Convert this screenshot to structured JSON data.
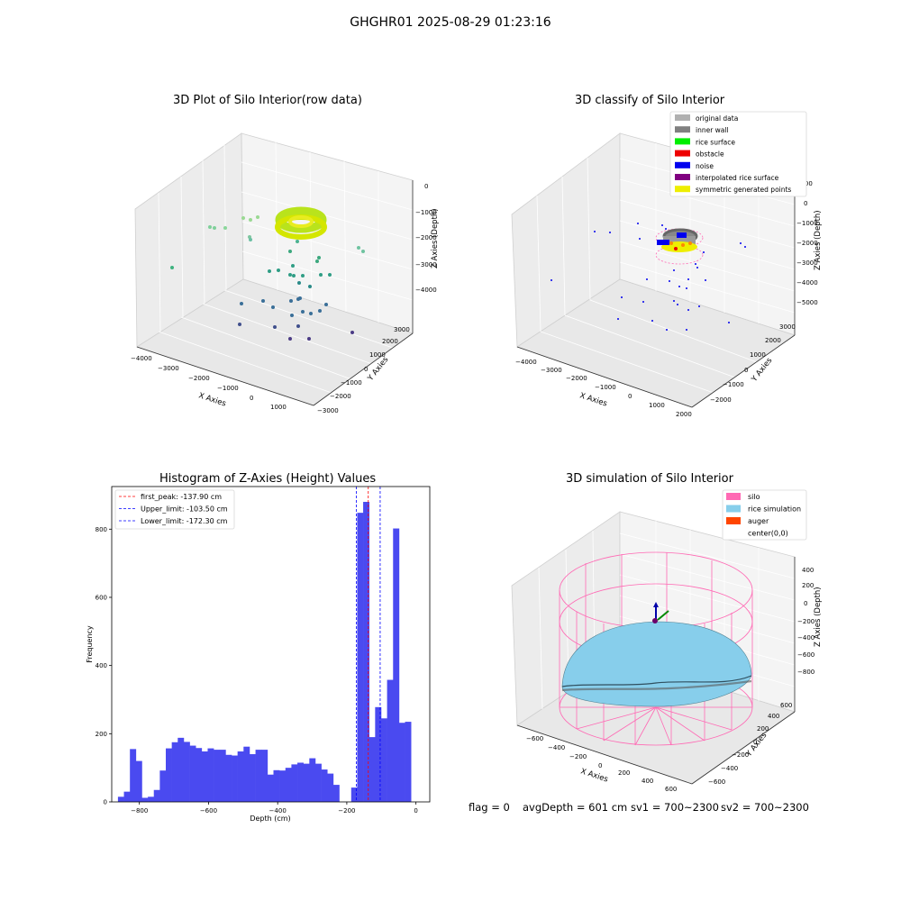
{
  "suptitle": "GHGHR01 2025-08-29 01:23:16",
  "panels": {
    "raw3d": {
      "title": "3D Plot of Silo Interior(row data)",
      "xlabel": "X Axies",
      "ylabel": "Y Axies",
      "zlabel": "Z Axies (Depth)",
      "xticks": [
        "−4000",
        "−3000",
        "−2000",
        "−1000",
        "0",
        "1000"
      ],
      "yticks": [
        "−3000",
        "−2000",
        "−1000",
        "0",
        "1000",
        "2000",
        "3000"
      ],
      "zticks": [
        "0",
        "−1000",
        "−2000",
        "−3000",
        "−4000"
      ]
    },
    "classify3d": {
      "title": "3D classify of Silo Interior",
      "xlabel": "X Axies",
      "ylabel": "Y Axies",
      "zlabel": "Z Axies (Depth)",
      "xticks": [
        "−4000",
        "−3000",
        "−2000",
        "−1000",
        "0",
        "1000",
        "2000"
      ],
      "yticks": [
        "−2000",
        "−1000",
        "0",
        "1000",
        "2000",
        "3000"
      ],
      "zticks": [
        "1000",
        "0",
        "−1000",
        "−2000",
        "−3000",
        "−4000",
        "−5000"
      ],
      "legend": [
        {
          "label": "original data",
          "color": "#b0b0b0"
        },
        {
          "label": "inner wall",
          "color": "#808080"
        },
        {
          "label": "rice surface",
          "color": "#00ee00"
        },
        {
          "label": "obstacle",
          "color": "#ee0000"
        },
        {
          "label": "noise",
          "color": "#0000ee"
        },
        {
          "label": "interpolated rice surface",
          "color": "#800080"
        },
        {
          "label": "symmetric generated points",
          "color": "#eeee00"
        }
      ]
    },
    "histogram": {
      "title": "Histogram of Z-Axies (Height) Values",
      "xlabel": "Depth (cm)",
      "ylabel": "Frequency",
      "legend": [
        {
          "label": "first_peak: -137.90 cm",
          "color": "#ff0000"
        },
        {
          "label": "Upper_limit: -103.50 cm",
          "color": "#0000ff"
        },
        {
          "label": "Lower_limit: -172.30 cm",
          "color": "#0000ff"
        }
      ]
    },
    "sim3d": {
      "title": "3D simulation of Silo Interior",
      "xlabel": "X Axies",
      "ylabel": "Y Axies",
      "zlabel": "Z Axies (Depth)",
      "xticks": [
        "−600",
        "−400",
        "−200",
        "0",
        "200",
        "400",
        "600"
      ],
      "yticks": [
        "−600",
        "−400",
        "−200",
        "0",
        "200",
        "400",
        "600"
      ],
      "zticks": [
        "400",
        "200",
        "0",
        "−200",
        "−400",
        "−600",
        "−800"
      ],
      "legend": [
        {
          "label": "silo",
          "color": "#ff69b4"
        },
        {
          "label": "rice simulation",
          "color": "#87ceeb"
        },
        {
          "label": "auger",
          "color": "#ff4500"
        },
        {
          "label": "center(0,0)",
          "color": ""
        }
      ]
    }
  },
  "footer": {
    "flag": "flag = 0",
    "avg": "avgDepth = 601 cm",
    "sv1": "sv1 = 700~2300",
    "sv2": "sv2 = 700~2300"
  },
  "chart_data": {
    "type": "bar",
    "title": "Histogram of Z-Axies (Height) Values",
    "xlabel": "Depth (cm)",
    "ylabel": "Frequency",
    "xlim": [
      -880,
      40
    ],
    "ylim": [
      0,
      925
    ],
    "xticks": [
      -800,
      -600,
      -400,
      -200,
      0
    ],
    "yticks": [
      0,
      200,
      400,
      600,
      800
    ],
    "bin_start": -862,
    "bin_width": 17.3,
    "values": [
      15,
      30,
      155,
      120,
      12,
      15,
      35,
      92,
      157,
      175,
      188,
      176,
      165,
      158,
      148,
      157,
      153,
      153,
      138,
      136,
      148,
      162,
      140,
      153,
      153,
      80,
      93,
      92,
      100,
      110,
      115,
      112,
      128,
      112,
      95,
      83,
      50,
      0,
      0,
      42,
      848,
      880,
      190,
      278,
      245,
      358,
      802,
      232,
      235
    ],
    "lines": [
      {
        "label": "first_peak: -137.90 cm",
        "x": -137.9,
        "color": "#ff0000"
      },
      {
        "label": "Upper_limit: -103.50 cm",
        "x": -103.5,
        "color": "#0000ff"
      },
      {
        "label": "Lower_limit: -172.30 cm",
        "x": -172.3,
        "color": "#0000ff"
      }
    ]
  }
}
